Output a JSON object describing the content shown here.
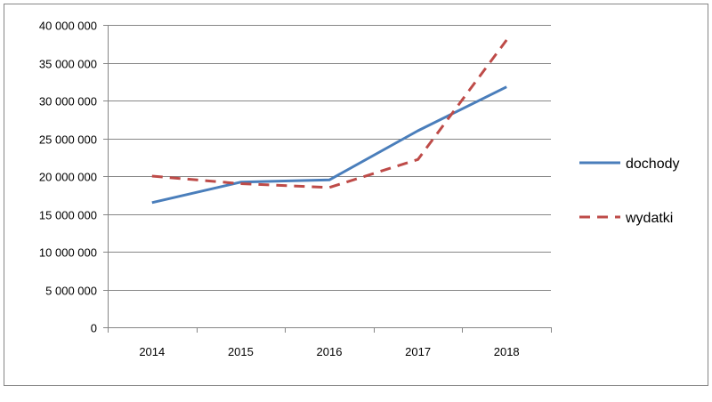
{
  "chart_data": {
    "type": "line",
    "title": "",
    "xlabel": "",
    "ylabel": "",
    "x": [
      "2014",
      "2015",
      "2016",
      "2017",
      "2018"
    ],
    "ylim": [
      0,
      40000000
    ],
    "ytick_step": 5000000,
    "ytick_labels": [
      "0",
      "5 000 000",
      "10 000 000",
      "15 000 000",
      "20 000 000",
      "25 000 000",
      "30 000 000",
      "35 000 000",
      "40 000 000"
    ],
    "grid": true,
    "legend_position": "right",
    "series": [
      {
        "name": "dochody",
        "values": [
          16500000,
          19200000,
          19500000,
          26000000,
          31800000
        ],
        "color": "#4a7ebb",
        "line_style": "solid"
      },
      {
        "name": "wydatki",
        "values": [
          20000000,
          19000000,
          18500000,
          22200000,
          38000000
        ],
        "color": "#be4b48",
        "line_style": "dashed"
      }
    ]
  }
}
